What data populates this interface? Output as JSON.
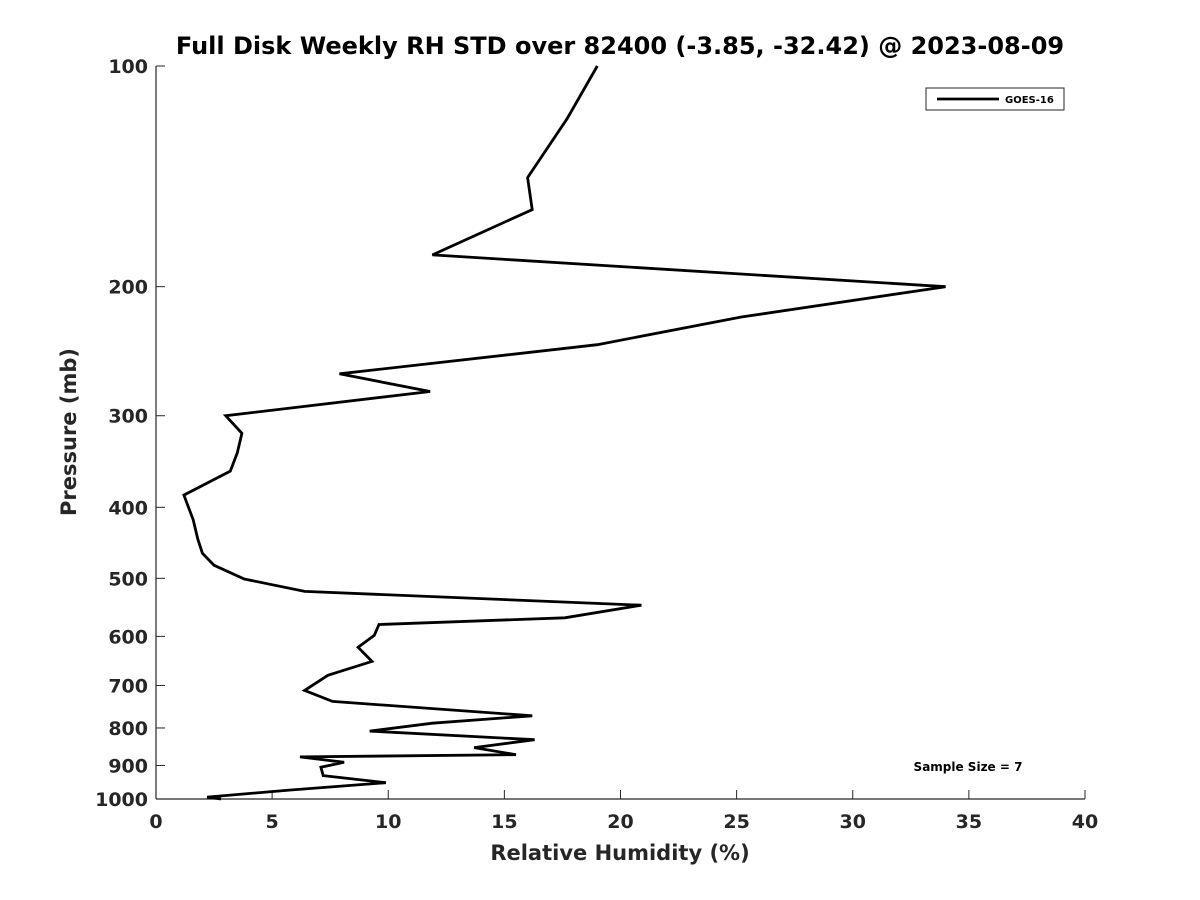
{
  "chart_data": {
    "type": "line",
    "title": "Full Disk Weekly RH STD over 82400 (-3.85, -32.42) @ 2023-08-09",
    "xlabel": "Relative Humidity (%)",
    "ylabel": "Pressure (mb)",
    "xlim": [
      0,
      40
    ],
    "ylim": [
      100,
      1000
    ],
    "yscale": "log",
    "y_inverted": true,
    "grid": false,
    "x_ticks": [
      0,
      5,
      10,
      15,
      20,
      25,
      30,
      35,
      40
    ],
    "y_ticks": [
      100,
      200,
      300,
      400,
      500,
      600,
      700,
      800,
      900,
      1000
    ],
    "legend_position": "top-right",
    "series": [
      {
        "name": "GOES-16",
        "color": "#000000",
        "x": [
          19.0,
          17.7,
          16.0,
          16.2,
          11.9,
          34.0,
          25.2,
          19.0,
          7.9,
          11.8,
          3.0,
          3.7,
          3.5,
          3.2,
          1.2,
          1.6,
          1.8,
          2.0,
          2.5,
          3.8,
          6.4,
          20.9,
          17.6,
          9.6,
          9.4,
          8.7,
          9.3,
          7.4,
          6.4,
          7.6,
          16.2,
          11.9,
          9.2,
          16.3,
          13.7,
          15.5,
          6.2,
          8.1,
          7.1,
          7.2,
          9.9,
          5.8,
          2.2,
          2.8
        ],
        "y": [
          100,
          118,
          142,
          157,
          181,
          200,
          220,
          240,
          263,
          278,
          300,
          317,
          337,
          357,
          385,
          416,
          442,
          462,
          480,
          501,
          521,
          544,
          566,
          578,
          598,
          621,
          649,
          678,
          711,
          736,
          770,
          788,
          808,
          830,
          851,
          870,
          876,
          891,
          905,
          929,
          950,
          972,
          994,
          1000
        ]
      }
    ],
    "annotations": [
      "Sample Size = 7"
    ]
  }
}
